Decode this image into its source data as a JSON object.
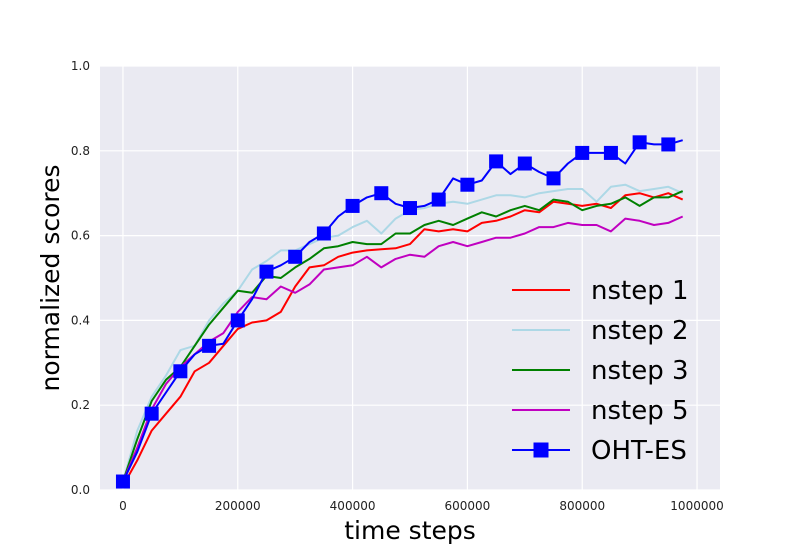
{
  "chart_data": {
    "type": "line",
    "title": "",
    "xlabel": "time steps",
    "ylabel": "normalized scores",
    "xlim": [
      -40000,
      1040000
    ],
    "ylim": [
      0.0,
      1.0
    ],
    "xticks": [
      0,
      200000,
      400000,
      600000,
      800000,
      1000000
    ],
    "xtick_labels": [
      "0",
      "200000",
      "400000",
      "600000",
      "800000",
      "1000000"
    ],
    "yticks": [
      0.0,
      0.2,
      0.4,
      0.6,
      0.8,
      1.0
    ],
    "ytick_labels": [
      "0.0",
      "0.2",
      "0.4",
      "0.6",
      "0.8",
      "1.0"
    ],
    "grid": true,
    "legend_position": "lower-right",
    "x": [
      0,
      25000,
      50000,
      75000,
      100000,
      125000,
      150000,
      175000,
      200000,
      225000,
      250000,
      275000,
      300000,
      325000,
      350000,
      375000,
      400000,
      425000,
      450000,
      475000,
      500000,
      525000,
      550000,
      575000,
      600000,
      625000,
      650000,
      675000,
      700000,
      725000,
      750000,
      775000,
      800000,
      825000,
      850000,
      875000,
      900000,
      925000,
      950000,
      975000
    ],
    "series": [
      {
        "name": "nstep 1",
        "color": "#ff0000",
        "marker": "none",
        "values": [
          0.01,
          0.07,
          0.14,
          0.18,
          0.22,
          0.28,
          0.3,
          0.34,
          0.38,
          0.395,
          0.4,
          0.42,
          0.48,
          0.525,
          0.53,
          0.55,
          0.56,
          0.565,
          0.568,
          0.57,
          0.58,
          0.615,
          0.61,
          0.615,
          0.61,
          0.63,
          0.635,
          0.645,
          0.66,
          0.655,
          0.68,
          0.675,
          0.67,
          0.675,
          0.665,
          0.695,
          0.7,
          0.69,
          0.7,
          0.685
        ]
      },
      {
        "name": "nstep 2",
        "color": "#add8e6",
        "marker": "none",
        "values": [
          0.02,
          0.14,
          0.22,
          0.27,
          0.33,
          0.34,
          0.4,
          0.44,
          0.47,
          0.52,
          0.54,
          0.565,
          0.565,
          0.58,
          0.595,
          0.6,
          0.62,
          0.635,
          0.605,
          0.64,
          0.66,
          0.665,
          0.675,
          0.68,
          0.675,
          0.685,
          0.695,
          0.695,
          0.69,
          0.7,
          0.705,
          0.71,
          0.71,
          0.68,
          0.715,
          0.72,
          0.705,
          0.71,
          0.715,
          0.7
        ]
      },
      {
        "name": "nstep 3",
        "color": "#008000",
        "marker": "none",
        "values": [
          0.02,
          0.12,
          0.21,
          0.26,
          0.29,
          0.34,
          0.39,
          0.43,
          0.47,
          0.465,
          0.505,
          0.5,
          0.525,
          0.545,
          0.57,
          0.575,
          0.585,
          0.58,
          0.58,
          0.605,
          0.605,
          0.625,
          0.635,
          0.625,
          0.64,
          0.655,
          0.645,
          0.66,
          0.67,
          0.66,
          0.685,
          0.68,
          0.66,
          0.67,
          0.675,
          0.69,
          0.67,
          0.69,
          0.69,
          0.705
        ]
      },
      {
        "name": "nstep 5",
        "color": "#c000c0",
        "marker": "none",
        "values": [
          0.02,
          0.1,
          0.19,
          0.25,
          0.29,
          0.32,
          0.35,
          0.37,
          0.42,
          0.455,
          0.45,
          0.48,
          0.465,
          0.485,
          0.52,
          0.525,
          0.53,
          0.55,
          0.525,
          0.545,
          0.555,
          0.55,
          0.575,
          0.585,
          0.575,
          0.585,
          0.595,
          0.595,
          0.605,
          0.62,
          0.62,
          0.63,
          0.625,
          0.625,
          0.61,
          0.64,
          0.635,
          0.625,
          0.63,
          0.645
        ]
      },
      {
        "name": "OHT-ES",
        "color": "#0000ff",
        "marker": "square",
        "values": [
          0.02,
          0.09,
          0.18,
          0.23,
          0.28,
          0.32,
          0.34,
          0.345,
          0.4,
          0.45,
          0.515,
          0.53,
          0.55,
          0.585,
          0.605,
          0.645,
          0.67,
          0.69,
          0.7,
          0.675,
          0.665,
          0.67,
          0.685,
          0.735,
          0.72,
          0.73,
          0.775,
          0.745,
          0.77,
          0.75,
          0.735,
          0.77,
          0.795,
          0.795,
          0.795,
          0.77,
          0.82,
          0.815,
          0.815,
          0.825
        ]
      }
    ]
  }
}
